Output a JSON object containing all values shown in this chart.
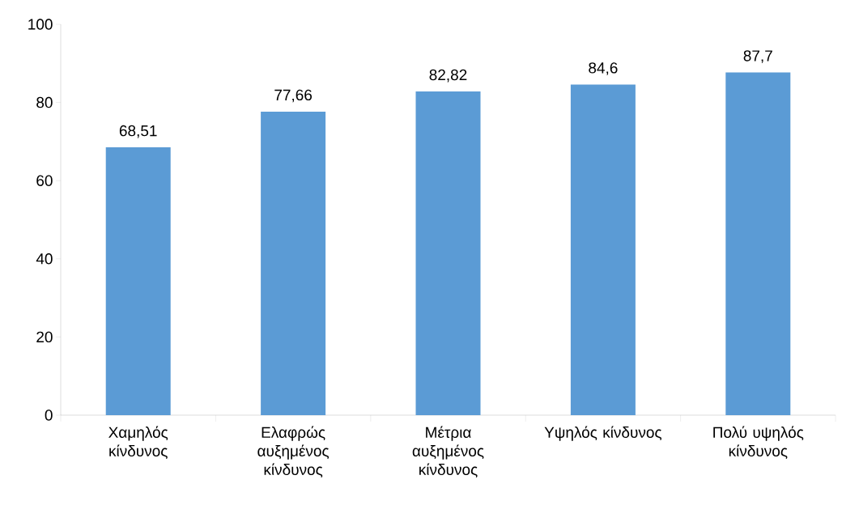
{
  "chart_data": {
    "type": "bar",
    "categories": [
      "Χαμηλός κίνδυνος",
      "Ελαφρώς αυξημένος κίνδυνος",
      "Μέτρια αυξημένος κίνδυνος",
      "Υψηλός κίνδυνος",
      "Πολύ υψηλός κίνδυνος"
    ],
    "values": [
      68.51,
      77.66,
      82.82,
      84.6,
      87.7
    ],
    "value_labels": [
      "68,51",
      "77,66",
      "82,82",
      "84,6",
      "87,7"
    ],
    "color": "#5b9bd5",
    "ylim": [
      0,
      100
    ],
    "yticks": [
      0,
      20,
      40,
      60,
      80,
      100
    ],
    "grid": false
  }
}
